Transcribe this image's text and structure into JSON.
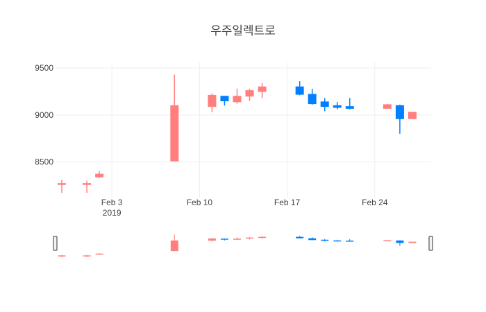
{
  "chart_data": {
    "type": "candlestick",
    "title": "우주일렉트로",
    "xlabel": "",
    "ylabel": "",
    "ylim": [
      8120,
      9560
    ],
    "y_ticks": [
      "8500",
      "9000",
      "9500"
    ],
    "x_ticks": [
      {
        "date": "2019-02-03",
        "label": "Feb 3",
        "sublabel": "2019"
      },
      {
        "date": "2019-02-10",
        "label": "Feb 10",
        "sublabel": ""
      },
      {
        "date": "2019-02-17",
        "label": "Feb 17",
        "sublabel": ""
      },
      {
        "date": "2019-02-24",
        "label": "Feb 24",
        "sublabel": ""
      }
    ],
    "grid": true,
    "increasing_color": "#FF7F7F",
    "decreasing_color": "#0080FF",
    "candles": [
      {
        "date": "2019-01-30",
        "open": 8260,
        "high": 8310,
        "low": 8170,
        "close": 8270
      },
      {
        "date": "2019-02-01",
        "open": 8260,
        "high": 8300,
        "low": 8170,
        "close": 8270
      },
      {
        "date": "2019-02-02",
        "open": 8340,
        "high": 8400,
        "low": 8330,
        "close": 8370
      },
      {
        "date": "2019-02-08",
        "open": 8510,
        "high": 9430,
        "low": 8510,
        "close": 9100
      },
      {
        "date": "2019-02-11",
        "open": 9090,
        "high": 9230,
        "low": 9030,
        "close": 9210
      },
      {
        "date": "2019-02-12",
        "open": 9200,
        "high": 9200,
        "low": 9100,
        "close": 9150
      },
      {
        "date": "2019-02-13",
        "open": 9140,
        "high": 9280,
        "low": 9120,
        "close": 9200
      },
      {
        "date": "2019-02-14",
        "open": 9200,
        "high": 9280,
        "low": 9150,
        "close": 9260
      },
      {
        "date": "2019-02-15",
        "open": 9250,
        "high": 9340,
        "low": 9180,
        "close": 9300
      },
      {
        "date": "2019-02-18",
        "open": 9300,
        "high": 9360,
        "low": 9210,
        "close": 9220
      },
      {
        "date": "2019-02-19",
        "open": 9220,
        "high": 9280,
        "low": 9110,
        "close": 9120
      },
      {
        "date": "2019-02-20",
        "open": 9140,
        "high": 9180,
        "low": 9040,
        "close": 9090
      },
      {
        "date": "2019-02-21",
        "open": 9100,
        "high": 9140,
        "low": 9060,
        "close": 9080
      },
      {
        "date": "2019-02-22",
        "open": 9090,
        "high": 9180,
        "low": 9060,
        "close": 9070
      },
      {
        "date": "2019-02-25",
        "open": 9070,
        "high": 9120,
        "low": 9070,
        "close": 9110
      },
      {
        "date": "2019-02-26",
        "open": 9100,
        "high": 9110,
        "low": 8800,
        "close": 8960
      },
      {
        "date": "2019-02-27",
        "open": 8960,
        "high": 9030,
        "low": 8960,
        "close": 9030
      }
    ],
    "range_slider": true
  }
}
